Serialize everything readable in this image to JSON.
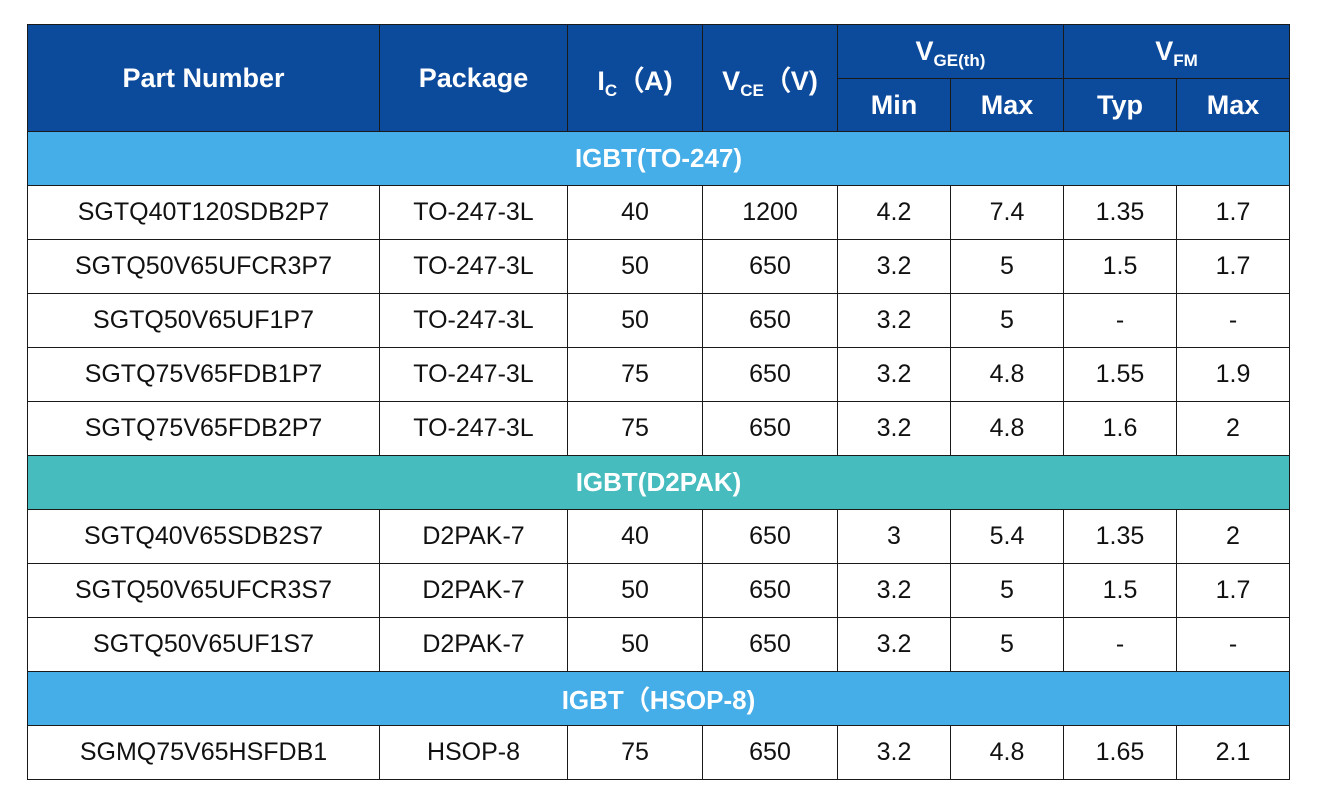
{
  "header": {
    "part_number": "Part Number",
    "package": "Package",
    "ic": {
      "symbol": "I",
      "sub": "C",
      "unit": "（A)"
    },
    "vce": {
      "symbol": "V",
      "sub": "CE",
      "unit": "（V)"
    },
    "vge": {
      "symbol": "V",
      "sub": "GE(th)"
    },
    "vfm": {
      "symbol": "V",
      "sub": "FM"
    },
    "vge_min": "Min",
    "vge_max": "Max",
    "vfm_typ": "Typ",
    "vfm_max": "Max"
  },
  "group_colors": {
    "blue": "#45ade8",
    "teal": "#47bcbe",
    "header": "#0c4a9c"
  },
  "groups": [
    {
      "title": "IGBT(TO-247)",
      "color": "blue",
      "rows": [
        {
          "part": "SGTQ40T120SDB2P7",
          "package": "TO-247-3L",
          "ic": "40",
          "vce": "1200",
          "vge_min": "4.2",
          "vge_max": "7.4",
          "vfm_typ": "1.35",
          "vfm_max": "1.7"
        },
        {
          "part": "SGTQ50V65UFCR3P7",
          "package": "TO-247-3L",
          "ic": "50",
          "vce": "650",
          "vge_min": "3.2",
          "vge_max": "5",
          "vfm_typ": "1.5",
          "vfm_max": "1.7"
        },
        {
          "part": "SGTQ50V65UF1P7",
          "package": "TO-247-3L",
          "ic": "50",
          "vce": "650",
          "vge_min": "3.2",
          "vge_max": "5",
          "vfm_typ": "-",
          "vfm_max": "-"
        },
        {
          "part": "SGTQ75V65FDB1P7",
          "package": "TO-247-3L",
          "ic": "75",
          "vce": "650",
          "vge_min": "3.2",
          "vge_max": "4.8",
          "vfm_typ": "1.55",
          "vfm_max": "1.9"
        },
        {
          "part": "SGTQ75V65FDB2P7",
          "package": "TO-247-3L",
          "ic": "75",
          "vce": "650",
          "vge_min": "3.2",
          "vge_max": "4.8",
          "vfm_typ": "1.6",
          "vfm_max": "2"
        }
      ]
    },
    {
      "title": "IGBT(D2PAK)",
      "color": "teal",
      "rows": [
        {
          "part": "SGTQ40V65SDB2S7",
          "package": "D2PAK-7",
          "ic": "40",
          "vce": "650",
          "vge_min": "3",
          "vge_max": "5.4",
          "vfm_typ": "1.35",
          "vfm_max": "2"
        },
        {
          "part": "SGTQ50V65UFCR3S7",
          "package": "D2PAK-7",
          "ic": "50",
          "vce": "650",
          "vge_min": "3.2",
          "vge_max": "5",
          "vfm_typ": "1.5",
          "vfm_max": "1.7"
        },
        {
          "part": "SGTQ50V65UF1S7",
          "package": "D2PAK-7",
          "ic": "50",
          "vce": "650",
          "vge_min": "3.2",
          "vge_max": "5",
          "vfm_typ": "-",
          "vfm_max": "-"
        }
      ]
    },
    {
      "title": "IGBT（HSOP-8)",
      "color": "blue",
      "rows": [
        {
          "part": "SGMQ75V65HSFDB1",
          "package": "HSOP-8",
          "ic": "75",
          "vce": "650",
          "vge_min": "3.2",
          "vge_max": "4.8",
          "vfm_typ": "1.65",
          "vfm_max": "2.1"
        }
      ]
    }
  ]
}
